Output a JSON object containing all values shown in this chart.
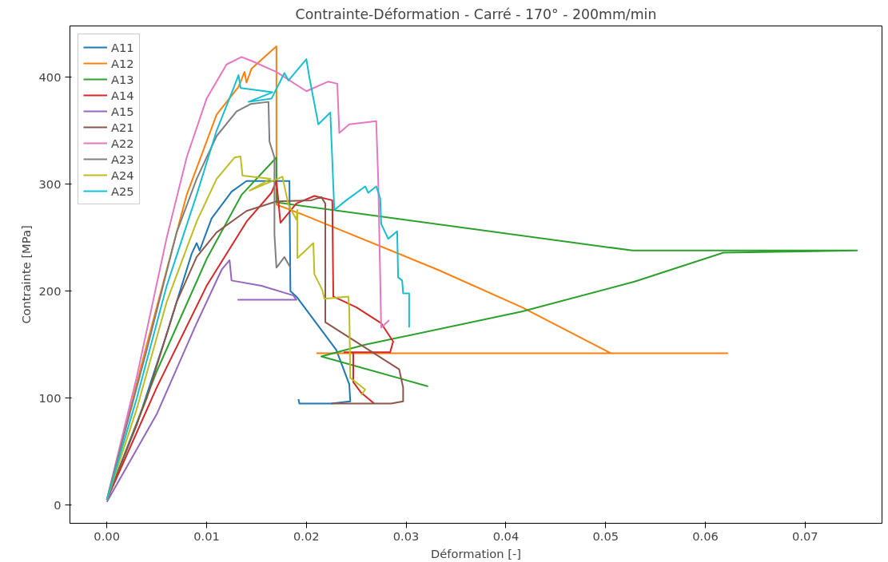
{
  "chart_data": {
    "type": "line",
    "title": "Contrainte-Déformation - Carré - 170° - 200mm/min",
    "xlabel": "Déformation [-]",
    "ylabel": "Contrainte [MPa]",
    "xlim": [
      -0.0037,
      0.0777
    ],
    "ylim": [
      -17,
      448
    ],
    "xticks": [
      {
        "value": 0,
        "label": "0.00"
      },
      {
        "value": 0.01,
        "label": "0.01"
      },
      {
        "value": 0.02,
        "label": "0.02"
      },
      {
        "value": 0.03,
        "label": "0.03"
      },
      {
        "value": 0.04,
        "label": "0.04"
      },
      {
        "value": 0.05,
        "label": "0.05"
      },
      {
        "value": 0.06,
        "label": "0.06"
      },
      {
        "value": 0.07,
        "label": "0.07"
      }
    ],
    "yticks": [
      0,
      100,
      200,
      300,
      400
    ],
    "grid": false,
    "legend": "top left",
    "marker": "none",
    "line_style": "solid",
    "series": [
      {
        "name": "A11",
        "color": "#1f77b4",
        "x": [
          0,
          0.003,
          0.006,
          0.0085,
          0.009,
          0.0093,
          0.0105,
          0.0125,
          0.014,
          0.0165,
          0.0183,
          0.0184,
          0.019,
          0.021,
          0.023,
          0.0243,
          0.0244,
          0.0225,
          0.0193,
          0.0192
        ],
        "values": [
          5,
          75,
          160,
          235,
          245,
          238,
          268,
          293,
          303,
          303,
          303,
          200,
          195,
          170,
          145,
          113,
          97,
          95,
          95,
          99
        ]
      },
      {
        "name": "A12",
        "color": "#ff7f0e",
        "x": [
          0,
          0.004,
          0.008,
          0.011,
          0.0132,
          0.0138,
          0.014,
          0.0145,
          0.017,
          0.017,
          0.0198,
          0.0332,
          0.0416,
          0.0505,
          0.0622,
          0.021
        ],
        "values": [
          5,
          150,
          290,
          365,
          391,
          405,
          395,
          408,
          429,
          281,
          271,
          220,
          185,
          142,
          142,
          142
        ]
      },
      {
        "name": "A13",
        "color": "#2ca02c",
        "x": [
          0,
          0.005,
          0.01,
          0.0135,
          0.017,
          0.017,
          0.0527,
          0.0752,
          0.0618,
          0.0529,
          0.0416,
          0.0259,
          0.0215,
          0.0322
        ],
        "values": [
          5,
          125,
          230,
          290,
          325,
          283,
          238,
          238,
          236,
          209,
          181,
          150,
          139,
          111
        ]
      },
      {
        "name": "A14",
        "color": "#d62728",
        "x": [
          0,
          0.005,
          0.01,
          0.014,
          0.0165,
          0.017,
          0.0174,
          0.019,
          0.0208,
          0.0226,
          0.0227,
          0.025,
          0.0275,
          0.0287,
          0.0284,
          0.0238,
          0.0247,
          0.0247,
          0.0255,
          0.0268
        ],
        "values": [
          5,
          110,
          205,
          265,
          292,
          303,
          264,
          282,
          289,
          285,
          195,
          185,
          170,
          153,
          143,
          143,
          143,
          115,
          105,
          95
        ]
      },
      {
        "name": "A15",
        "color": "#9467bd",
        "x": [
          0,
          0.005,
          0.009,
          0.0115,
          0.0123,
          0.0125,
          0.0155,
          0.0187,
          0.019,
          0.0131
        ],
        "values": [
          3,
          85,
          170,
          220,
          229,
          210,
          205,
          196,
          192,
          192
        ]
      },
      {
        "name": "A21",
        "color": "#8c564b",
        "x": [
          0,
          0.004,
          0.007,
          0.009,
          0.011,
          0.014,
          0.017,
          0.0205,
          0.0215,
          0.0219,
          0.0219,
          0.0293,
          0.0297,
          0.0297,
          0.0285,
          0.0225
        ],
        "values": [
          5,
          100,
          190,
          232,
          255,
          275,
          284,
          285,
          288,
          282,
          171,
          127,
          110,
          97,
          95,
          95
        ]
      },
      {
        "name": "A22",
        "color": "#e377c2",
        "x": [
          0,
          0.003,
          0.006,
          0.008,
          0.01,
          0.012,
          0.0135,
          0.0146,
          0.017,
          0.02,
          0.0222,
          0.0231,
          0.0233,
          0.0243,
          0.027,
          0.0272,
          0.0275,
          0.0283
        ],
        "values": [
          5,
          120,
          250,
          325,
          380,
          412,
          419,
          415,
          405,
          387,
          396,
          394,
          348,
          356,
          359,
          305,
          166,
          173
        ]
      },
      {
        "name": "A23",
        "color": "#7f7f7f",
        "x": [
          0,
          0.004,
          0.007,
          0.009,
          0.011,
          0.013,
          0.0144,
          0.0162,
          0.0163,
          0.0168,
          0.0168,
          0.017,
          0.0178,
          0.0184
        ],
        "values": [
          5,
          145,
          255,
          305,
          345,
          368,
          375,
          377,
          340,
          325,
          253,
          222,
          232,
          222
        ]
      },
      {
        "name": "A24",
        "color": "#bcbd22",
        "x": [
          0,
          0.003,
          0.006,
          0.009,
          0.011,
          0.0128,
          0.0134,
          0.0136,
          0.0164,
          0.0143,
          0.0176,
          0.0182,
          0.019,
          0.0191,
          0.0191,
          0.0207,
          0.0208,
          0.0216,
          0.0218,
          0.0242,
          0.0243,
          0.0244,
          0.0259,
          0.0255
        ],
        "values": [
          5,
          90,
          190,
          265,
          305,
          325,
          326,
          308,
          305,
          294,
          307,
          281,
          267,
          276,
          231,
          245,
          216,
          201,
          193,
          195,
          183,
          119,
          108,
          103
        ]
      },
      {
        "name": "A25",
        "color": "#17becf",
        "x": [
          0,
          0.003,
          0.006,
          0.009,
          0.011,
          0.0125,
          0.0132,
          0.0134,
          0.0166,
          0.0142,
          0.0165,
          0.0178,
          0.0182,
          0.02,
          0.0203,
          0.0212,
          0.0224,
          0.0228,
          0.024,
          0.0259,
          0.0262,
          0.027,
          0.0274,
          0.0275,
          0.0282,
          0.0291,
          0.0292,
          0.0296,
          0.0297,
          0.0303,
          0.0303
        ],
        "values": [
          5,
          100,
          205,
          290,
          350,
          385,
          402,
          390,
          386,
          377,
          380,
          404,
          397,
          417,
          400,
          356,
          367,
          276,
          285,
          298,
          292,
          298,
          287,
          263,
          249,
          256,
          213,
          210,
          198,
          198,
          166
        ]
      }
    ]
  }
}
